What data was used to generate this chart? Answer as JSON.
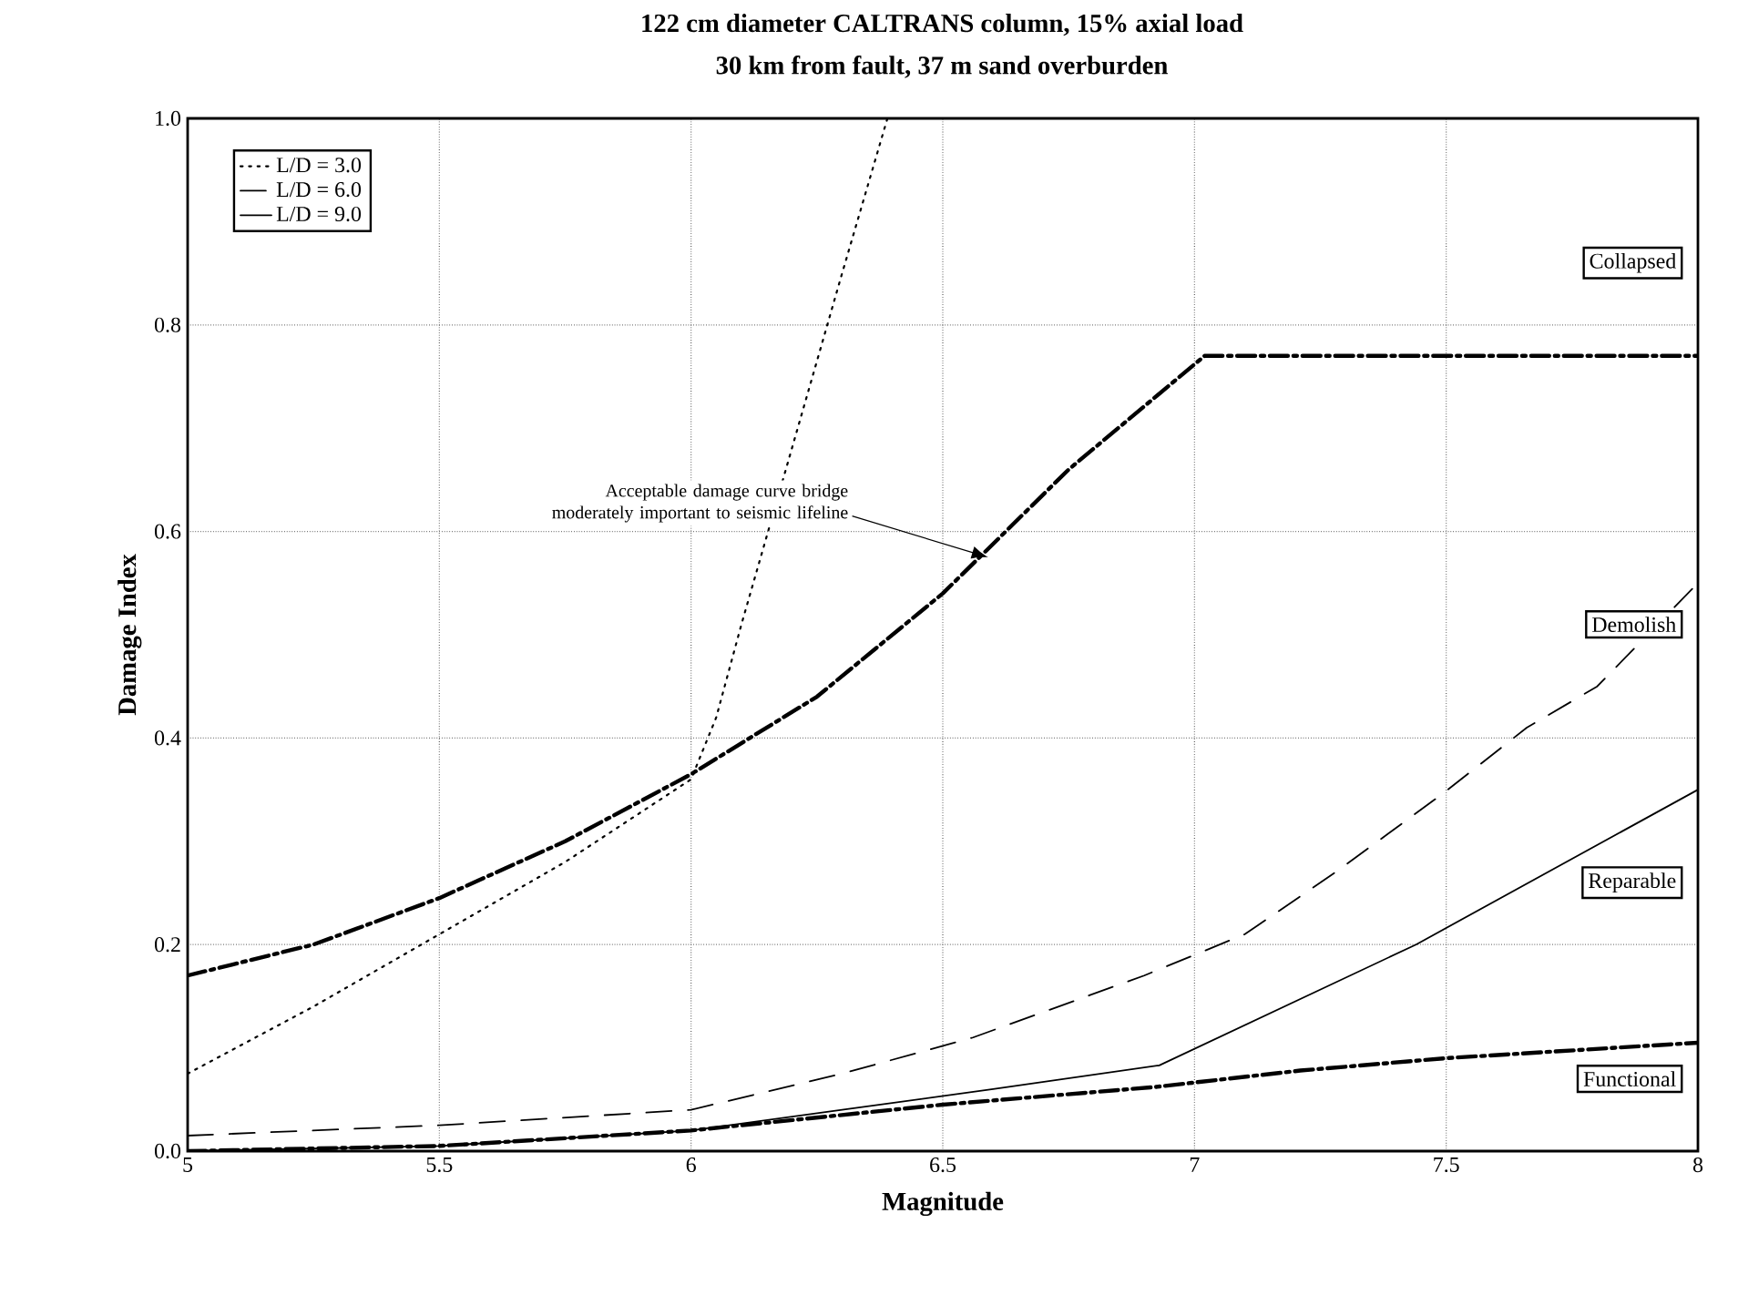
{
  "chart_data": {
    "type": "line",
    "title": "122 cm diameter CALTRANS column, 15% axial load",
    "subtitle": "30 km from fault, 37 m sand overburden",
    "xlabel": "Magnitude",
    "ylabel": "Damage Index",
    "xlim": [
      5,
      8
    ],
    "ylim": [
      0,
      1
    ],
    "xticks": [
      5,
      5.5,
      6,
      6.5,
      7,
      7.5,
      8
    ],
    "yticks": [
      {
        "value": 0,
        "label": "0.0"
      },
      {
        "value": 0.2,
        "label": "0.2"
      },
      {
        "value": 0.4,
        "label": "0.4"
      },
      {
        "value": 0.6,
        "label": "0.6"
      },
      {
        "value": 0.8,
        "label": "0.8"
      },
      {
        "value": 1,
        "label": "1.0"
      }
    ],
    "grid": true,
    "legend": "top left",
    "series": [
      {
        "name": "L/D = 3.0",
        "color": "#000000",
        "line_style": "dotted",
        "x": [
          5,
          5.25,
          5.5,
          5.75,
          6,
          6.05,
          6.1,
          6.2,
          6.3,
          6.39
        ],
        "values": [
          0.075,
          0.14,
          0.21,
          0.28,
          0.36,
          0.42,
          0.51,
          0.68,
          0.85,
          1.0
        ]
      },
      {
        "name": "L/D = 6.0",
        "color": "#000000",
        "line_style": "dashed",
        "x": [
          5,
          5.5,
          6,
          6.3,
          6.56,
          6.9,
          7.1,
          7.28,
          7.49,
          7.66,
          7.8,
          8
        ],
        "values": [
          0.015,
          0.025,
          0.04,
          0.075,
          0.11,
          0.17,
          0.21,
          0.27,
          0.345,
          0.41,
          0.45,
          0.55
        ]
      },
      {
        "name": "L/D = 9.0",
        "color": "#000000",
        "line_style": "solid",
        "x": [
          5,
          5.5,
          6,
          6.3,
          6.6,
          6.93,
          7.44,
          8
        ],
        "values": [
          0.0,
          0.005,
          0.02,
          0.04,
          0.06,
          0.083,
          0.2,
          0.35
        ]
      },
      {
        "color": "#000000",
        "line_style": "dashdotted",
        "x": [
          5,
          5.25,
          5.5,
          5.75,
          6,
          6.25,
          6.5,
          6.75,
          7.02,
          8
        ],
        "values": [
          0.17,
          0.2,
          0.245,
          0.3,
          0.365,
          0.44,
          0.54,
          0.66,
          0.77,
          0.77
        ]
      },
      {
        "color": "#000000",
        "line_style": "dashdotted",
        "x": [
          5,
          5.5,
          6,
          6.5,
          6.92,
          7.21,
          7.5,
          8
        ],
        "values": [
          0.0,
          0.005,
          0.02,
          0.045,
          0.062,
          0.078,
          0.09,
          0.105
        ]
      }
    ],
    "annotations": [
      {
        "text": "Acceptable damage curve bridge moderately important to seismic lifeline",
        "x": 6.59,
        "y": 0.575
      },
      "Collapsed",
      "Demolish",
      "Reparable",
      "Functional"
    ]
  }
}
